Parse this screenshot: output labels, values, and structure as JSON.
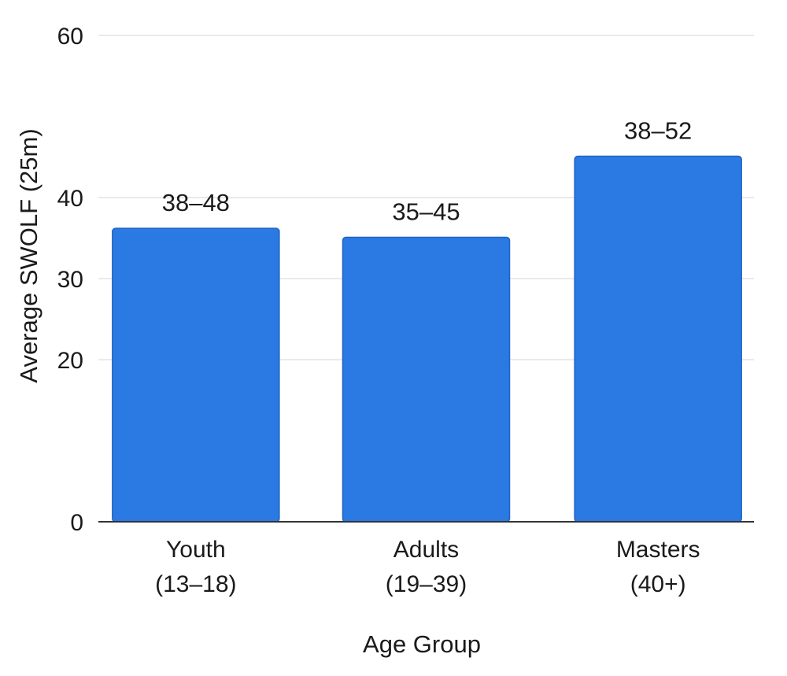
{
  "chart_data": {
    "type": "bar",
    "categories": [
      [
        "Youth",
        "(13–18)"
      ],
      [
        "Adults",
        "(19–39)"
      ],
      [
        "Masters",
        "(40+)"
      ]
    ],
    "values": [
      36.2,
      35.1,
      45.1
    ],
    "data_labels": [
      "38–48",
      "35–45",
      "38–52"
    ],
    "title": "",
    "xlabel": "Age Group",
    "ylabel": "Average SWOLF (25m)",
    "ylim": [
      0,
      60
    ],
    "yticks": [
      0,
      20,
      30,
      40,
      60
    ],
    "grid": true,
    "legend": "none",
    "colors": {
      "bar": "#2b79e3",
      "bar_edge": "#1f63c2",
      "grid": "#e3e3e3",
      "baseline": "#333333"
    }
  }
}
